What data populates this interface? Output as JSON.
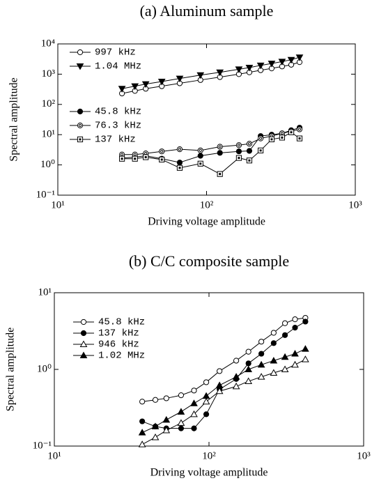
{
  "chart_data": [
    {
      "type": "line",
      "title": "(a)  Aluminum sample",
      "x_label": "Driving voltage amplitude",
      "y_label": "Spectral amplitude",
      "xscale": "log",
      "yscale": "log",
      "xlim": [
        10,
        1000
      ],
      "ylim": [
        0.1,
        10000
      ],
      "xticks": [
        {
          "value": 10,
          "label": "10¹"
        },
        {
          "value": 100,
          "label": "10²"
        },
        {
          "value": 1000,
          "label": "10³"
        }
      ],
      "yticks": [
        {
          "value": 0.1,
          "label": "10⁻¹"
        },
        {
          "value": 1,
          "label": "10⁰"
        },
        {
          "value": 10,
          "label": "10¹"
        },
        {
          "value": 100,
          "label": "10²"
        },
        {
          "value": 1000,
          "label": "10³"
        },
        {
          "value": 10000,
          "label": "10⁴"
        }
      ],
      "x": [
        27,
        33,
        39,
        50,
        66,
        91,
        123,
        165,
        194,
        231,
        274,
        322,
        371,
        422
      ],
      "series": [
        {
          "name": "997 kHz",
          "color": "#000000",
          "marker": "circle-open",
          "values": [
            230,
            280,
            330,
            400,
            500,
            640,
            800,
            1000,
            1150,
            1350,
            1550,
            1800,
            2050,
            2500
          ]
        },
        {
          "name": "1.04 MHz",
          "color": "#000000",
          "marker": "triangle-down-filled",
          "values": [
            330,
            400,
            470,
            570,
            720,
            930,
            1150,
            1450,
            1650,
            1950,
            2250,
            2600,
            3000,
            3600
          ]
        },
        {
          "name": "45.8 kHz",
          "color": "#000000",
          "marker": "circle-filled",
          "values": [
            1.7,
            1.8,
            2.0,
            1.6,
            1.2,
            2.0,
            2.5,
            2.8,
            2.9,
            9,
            10,
            11,
            14,
            17
          ]
        },
        {
          "name": "76.3 kHz",
          "color": "#000000",
          "marker": "circle-double",
          "values": [
            2.2,
            2.2,
            2.4,
            2.8,
            3.3,
            3.0,
            4.0,
            4.5,
            5.0,
            7.5,
            9,
            11,
            13,
            15
          ]
        },
        {
          "name": "137 kHz",
          "color": "#000000",
          "marker": "square-dot",
          "values": [
            1.6,
            1.6,
            1.8,
            1.5,
            0.8,
            1.1,
            0.5,
            1.7,
            1.4,
            3,
            7,
            8,
            12,
            7.5
          ]
        }
      ]
    },
    {
      "type": "line",
      "title": "(b)  C/C composite sample",
      "x_label": "Driving voltage amplitude",
      "y_label": "Spectral amplitude",
      "xscale": "log",
      "yscale": "log",
      "xlim": [
        10,
        1000
      ],
      "ylim": [
        0.1,
        10
      ],
      "xticks": [
        {
          "value": 10,
          "label": "10¹"
        },
        {
          "value": 100,
          "label": "10²"
        },
        {
          "value": 1000,
          "label": "10³"
        }
      ],
      "yticks": [
        {
          "value": 0.1,
          "label": "10⁻¹"
        },
        {
          "value": 1,
          "label": "10⁰"
        },
        {
          "value": 10,
          "label": "10¹"
        }
      ],
      "x": [
        37,
        45,
        53,
        66,
        80,
        96,
        117,
        150,
        180,
        218,
        262,
        310,
        360,
        420
      ],
      "series": [
        {
          "name": "45.8 kHz",
          "color": "#000000",
          "marker": "circle-open",
          "values": [
            0.38,
            0.4,
            0.42,
            0.46,
            0.53,
            0.68,
            0.95,
            1.3,
            1.7,
            2.3,
            3.0,
            4.0,
            4.5,
            4.7
          ]
        },
        {
          "name": "137 kHz",
          "color": "#000000",
          "marker": "circle-filled",
          "values": [
            0.21,
            0.18,
            0.17,
            0.17,
            0.17,
            0.26,
            0.55,
            0.75,
            1.2,
            1.6,
            2.2,
            2.8,
            3.5,
            4.2
          ]
        },
        {
          "name": "946 kHz",
          "color": "#000000",
          "marker": "triangle-up-open",
          "values": [
            0.105,
            0.13,
            0.16,
            0.2,
            0.26,
            0.38,
            0.52,
            0.6,
            0.7,
            0.8,
            0.9,
            1.0,
            1.15,
            1.35
          ]
        },
        {
          "name": "1.02 MHz",
          "color": "#000000",
          "marker": "triangle-up-filled",
          "values": [
            0.15,
            0.18,
            0.22,
            0.28,
            0.36,
            0.45,
            0.62,
            0.8,
            1.0,
            1.15,
            1.3,
            1.45,
            1.6,
            1.85
          ]
        }
      ]
    }
  ]
}
